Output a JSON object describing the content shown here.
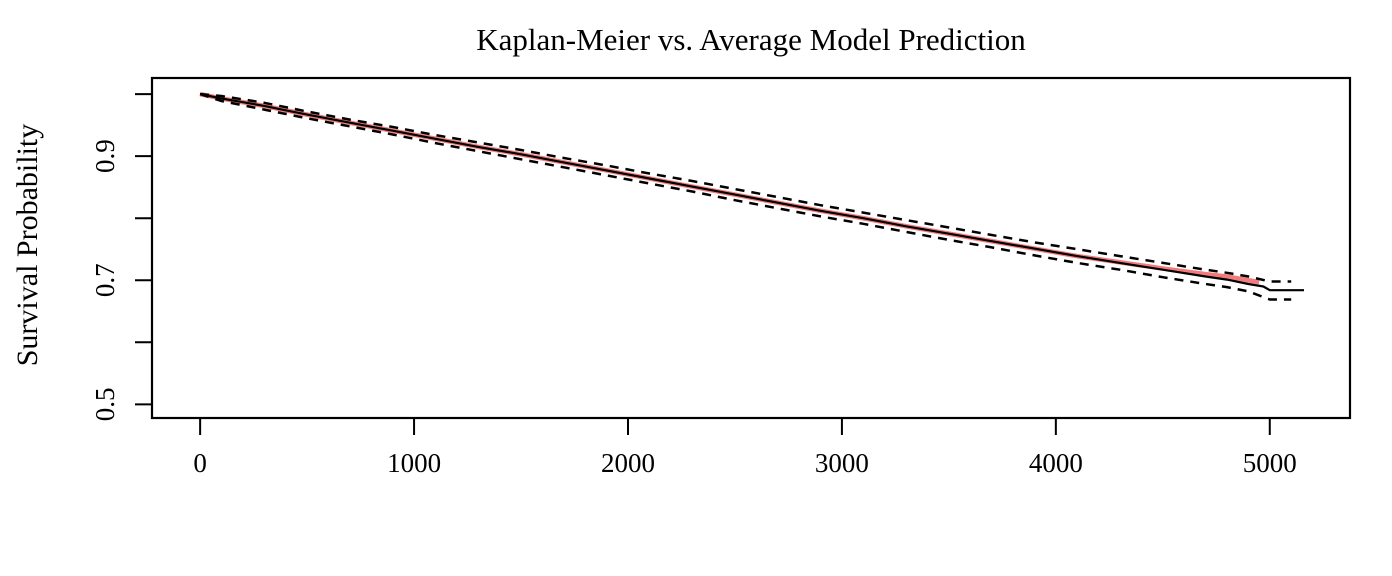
{
  "chart_data": {
    "type": "line",
    "title": "Kaplan-Meier vs. Average Model Prediction",
    "xlabel": "",
    "ylabel": "Survival Probability",
    "xlim": [
      -225,
      5375
    ],
    "ylim": [
      0.478,
      1.026
    ],
    "grid": false,
    "legend": "none",
    "background_color": "#FFFFFF",
    "axis_color": "#000000",
    "x_ticks": [
      {
        "value": 0,
        "label": "0"
      },
      {
        "value": 1000,
        "label": "1000"
      },
      {
        "value": 2000,
        "label": "2000"
      },
      {
        "value": 3000,
        "label": "3000"
      },
      {
        "value": 4000,
        "label": "4000"
      },
      {
        "value": 5000,
        "label": "5000"
      }
    ],
    "y_ticks": [
      {
        "value": 0.5,
        "label": "0.5"
      },
      {
        "value": 0.6,
        "label": ""
      },
      {
        "value": 0.7,
        "label": "0.7"
      },
      {
        "value": 0.8,
        "label": ""
      },
      {
        "value": 0.9,
        "label": "0.9"
      },
      {
        "value": 1.0,
        "label": ""
      }
    ],
    "series": [
      {
        "name": "average-model-prediction",
        "style": "solid",
        "color": "#F47B7B",
        "width": 4.6,
        "x": [
          0,
          100,
          200,
          300,
          400,
          500,
          700,
          900,
          1100,
          1300,
          1500,
          1700,
          1900,
          2100,
          2300,
          2500,
          2700,
          2900,
          3100,
          3300,
          3500,
          3700,
          3900,
          4100,
          4300,
          4500,
          4700,
          4800,
          4900,
          4950
        ],
        "y": [
          1.0,
          0.993,
          0.987,
          0.981,
          0.974,
          0.967,
          0.954,
          0.941,
          0.928,
          0.915,
          0.903,
          0.89,
          0.877,
          0.864,
          0.851,
          0.838,
          0.825,
          0.812,
          0.8,
          0.787,
          0.775,
          0.763,
          0.751,
          0.739,
          0.729,
          0.719,
          0.71,
          0.706,
          0.7,
          0.697
        ]
      },
      {
        "name": "kaplan-meier-estimate",
        "style": "solid",
        "color": "#000000",
        "width": 2.2,
        "x": [
          0,
          100,
          200,
          300,
          400,
          500,
          700,
          900,
          1100,
          1300,
          1500,
          1700,
          1900,
          2100,
          2300,
          2500,
          2700,
          2900,
          3100,
          3300,
          3500,
          3700,
          3900,
          4100,
          4300,
          4500,
          4700,
          4800,
          4900,
          4970,
          5000,
          5160
        ],
        "y": [
          1.0,
          0.993,
          0.987,
          0.981,
          0.974,
          0.967,
          0.954,
          0.941,
          0.928,
          0.915,
          0.903,
          0.89,
          0.877,
          0.864,
          0.851,
          0.838,
          0.825,
          0.812,
          0.8,
          0.787,
          0.775,
          0.763,
          0.751,
          0.739,
          0.728,
          0.717,
          0.706,
          0.701,
          0.694,
          0.69,
          0.684,
          0.684
        ]
      },
      {
        "name": "confidence-interval-upper",
        "style": "dashed",
        "color": "#000000",
        "width": 2.5,
        "x": [
          0,
          100,
          300,
          500,
          700,
          900,
          1100,
          1300,
          1500,
          1700,
          1900,
          2100,
          2300,
          2500,
          2700,
          2900,
          3100,
          3300,
          3500,
          3700,
          3900,
          4100,
          4300,
          4500,
          4700,
          4800,
          4900,
          5000,
          5100
        ],
        "y": [
          1.0,
          0.997,
          0.986,
          0.972,
          0.959,
          0.947,
          0.934,
          0.922,
          0.91,
          0.897,
          0.885,
          0.872,
          0.86,
          0.847,
          0.834,
          0.821,
          0.809,
          0.797,
          0.785,
          0.773,
          0.761,
          0.75,
          0.739,
          0.728,
          0.717,
          0.712,
          0.706,
          0.698,
          0.698
        ]
      },
      {
        "name": "confidence-interval-lower",
        "style": "dashed",
        "color": "#000000",
        "width": 2.5,
        "x": [
          0,
          100,
          300,
          500,
          700,
          900,
          1100,
          1300,
          1500,
          1700,
          1900,
          2100,
          2300,
          2500,
          2700,
          2900,
          3100,
          3300,
          3500,
          3700,
          3900,
          4100,
          4300,
          4500,
          4700,
          4800,
          4900,
          5000,
          5100
        ],
        "y": [
          1.0,
          0.989,
          0.975,
          0.961,
          0.948,
          0.935,
          0.921,
          0.908,
          0.895,
          0.882,
          0.869,
          0.856,
          0.843,
          0.829,
          0.816,
          0.803,
          0.791,
          0.778,
          0.765,
          0.753,
          0.74,
          0.728,
          0.717,
          0.705,
          0.694,
          0.689,
          0.682,
          0.669,
          0.669
        ]
      }
    ]
  }
}
